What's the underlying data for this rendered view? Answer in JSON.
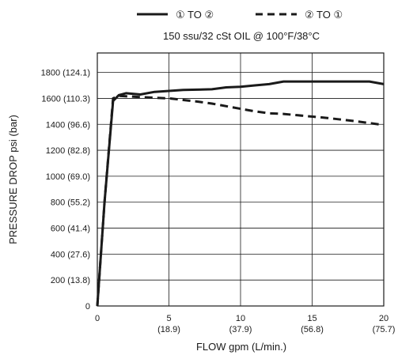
{
  "chart_data": {
    "type": "line",
    "subtitle": "150 ssu/32 cSt OIL @ 100°F/38°C",
    "xlabel": "FLOW gpm (L/min.)",
    "ylabel": "PRESSURE DROP psi (bar)",
    "xlim": [
      0,
      20
    ],
    "ylim": [
      0,
      1950
    ],
    "grid": true,
    "legend_position": "top-center",
    "x_ticks": [
      {
        "value": 0,
        "label": "0",
        "sub": ""
      },
      {
        "value": 5,
        "label": "5",
        "sub": "(18.9)"
      },
      {
        "value": 10,
        "label": "10",
        "sub": "(37.9)"
      },
      {
        "value": 15,
        "label": "15",
        "sub": "(56.8)"
      },
      {
        "value": 20,
        "label": "20",
        "sub": "(75.7)"
      }
    ],
    "y_ticks": [
      {
        "value": 0,
        "label": "0"
      },
      {
        "value": 200,
        "label": "200 (13.8)"
      },
      {
        "value": 400,
        "label": "400 (27.6)"
      },
      {
        "value": 600,
        "label": "600 (41.4)"
      },
      {
        "value": 800,
        "label": "800 (55.2)"
      },
      {
        "value": 1000,
        "label": "1000 (69.0)"
      },
      {
        "value": 1200,
        "label": "1200 (82.8)"
      },
      {
        "value": 1400,
        "label": "1400 (96.6)"
      },
      {
        "value": 1600,
        "label": "1600 (110.3)"
      },
      {
        "value": 1800,
        "label": "1800 (124.1)"
      }
    ],
    "series": [
      {
        "name": "① TO ②",
        "style": "solid",
        "color": "#1a1a1a",
        "points": [
          [
            0,
            0
          ],
          [
            0.5,
            800
          ],
          [
            1.1,
            1580
          ],
          [
            1.5,
            1625
          ],
          [
            2,
            1640
          ],
          [
            3,
            1630
          ],
          [
            4,
            1650
          ],
          [
            6,
            1665
          ],
          [
            8,
            1670
          ],
          [
            9,
            1685
          ],
          [
            10,
            1690
          ],
          [
            11,
            1700
          ],
          [
            12,
            1710
          ],
          [
            13,
            1730
          ],
          [
            15,
            1730
          ],
          [
            17,
            1730
          ],
          [
            19,
            1730
          ],
          [
            20,
            1710
          ]
        ]
      },
      {
        "name": "② TO ①",
        "style": "dashed",
        "color": "#1a1a1a",
        "points": [
          [
            0,
            0
          ],
          [
            0.5,
            800
          ],
          [
            1.1,
            1600
          ],
          [
            1.5,
            1620
          ],
          [
            3,
            1610
          ],
          [
            5,
            1600
          ],
          [
            7,
            1575
          ],
          [
            8,
            1560
          ],
          [
            10,
            1520
          ],
          [
            11,
            1500
          ],
          [
            12,
            1485
          ],
          [
            13,
            1480
          ],
          [
            14,
            1470
          ],
          [
            16,
            1450
          ],
          [
            18,
            1425
          ],
          [
            20,
            1395
          ]
        ]
      }
    ]
  }
}
